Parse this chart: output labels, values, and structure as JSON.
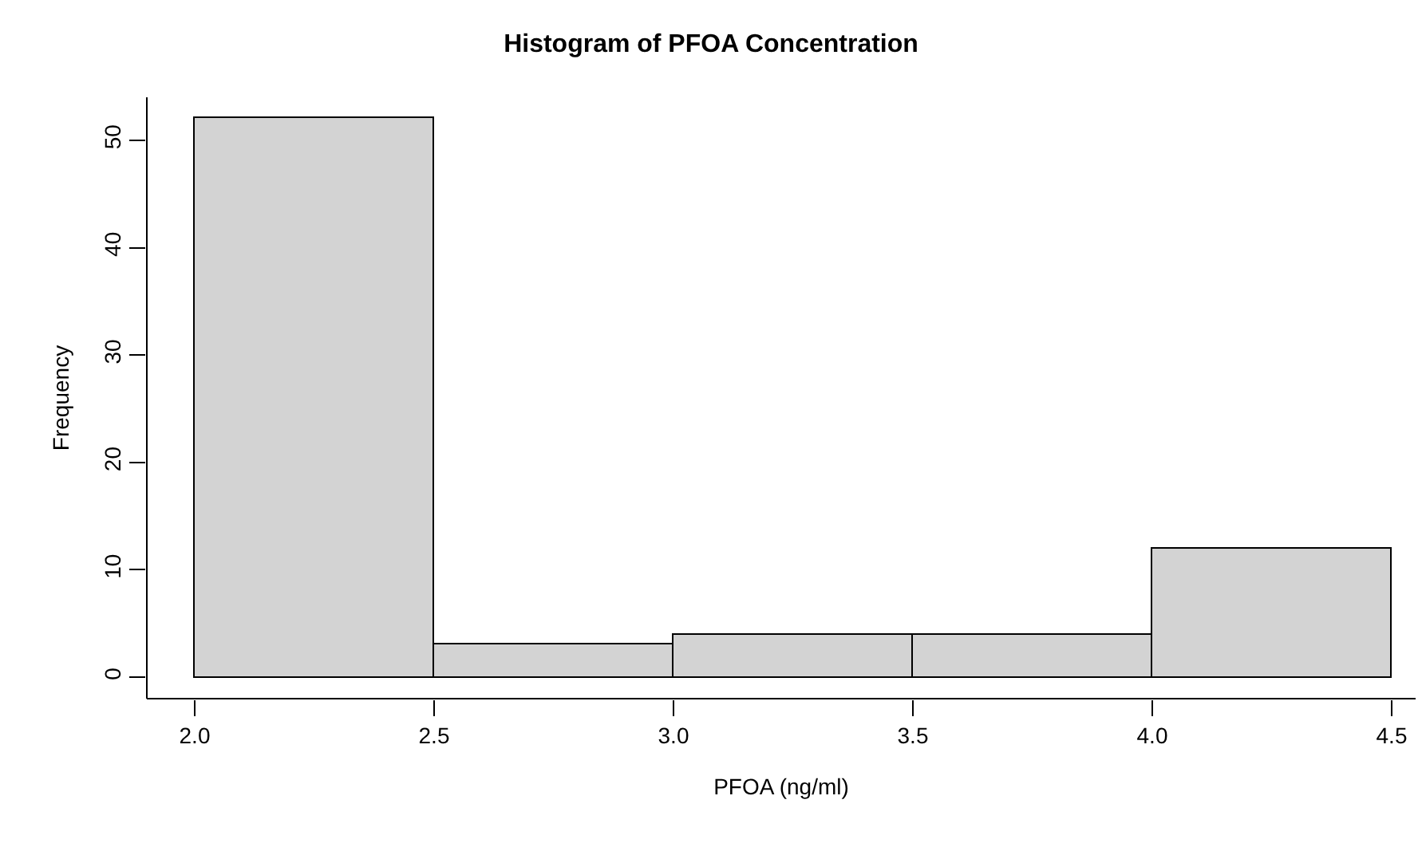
{
  "chart_data": {
    "type": "histogram",
    "title": "Histogram of PFOA Concentration",
    "xlabel": "PFOA (ng/ml)",
    "ylabel": "Frequency",
    "bins": [
      2.0,
      2.5,
      3.0,
      3.5,
      4.0,
      4.5
    ],
    "values": [
      52,
      3,
      4,
      4,
      12
    ],
    "color": "#d3d3d3",
    "xlim": [
      1.9,
      4.55
    ],
    "xticks": [
      {
        "value": 2,
        "label": "2.0"
      },
      2.5,
      {
        "value": 3,
        "label": "3.0"
      },
      3.5,
      {
        "value": 4,
        "label": "4.0"
      },
      4.5
    ],
    "ylim": [
      -2,
      54
    ],
    "yticks": [
      0,
      10,
      20,
      30,
      40,
      50
    ],
    "grid": false
  }
}
